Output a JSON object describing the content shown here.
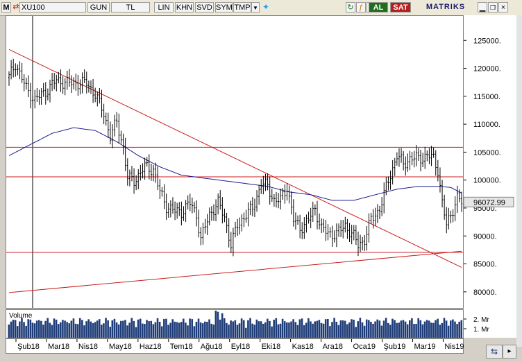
{
  "toolbar": {
    "m_label": "M",
    "symbol": "XU100",
    "period": "GUN",
    "currency": "TL",
    "scale": "LIN",
    "buttons": [
      "KHN",
      "SVD",
      "SYM",
      "TMP"
    ],
    "buy": "AL",
    "sell": "SAT",
    "brand": "MATRIKS",
    "icons": [
      "refresh-icon",
      "twitter-icon",
      "formula-icon",
      "clock-icon",
      "minimize-icon",
      "restore-icon",
      "close-icon"
    ]
  },
  "colors": {
    "price": "#000000",
    "ma": "#1c1c8c",
    "trend": "#c81e1e",
    "volume": "#1e3c78",
    "buy": "#1e6e1e",
    "sell": "#b41e1e"
  },
  "chart_data": {
    "type": "bar",
    "symbol": "XU100",
    "ylim": [
      77000,
      129500
    ],
    "yticks": [
      80000,
      85000,
      90000,
      95000,
      100000,
      105000,
      110000,
      115000,
      120000,
      125000
    ],
    "ytick_labels": [
      "80000.",
      "85000.",
      "90000.",
      "95000.",
      "100000.",
      "105000.",
      "110000.",
      "115000.",
      "120000.",
      "125000."
    ],
    "last_price": 96072.99,
    "last_price_label": "96072.99",
    "x_months": [
      "Şub18",
      "Mar18",
      "Nis18",
      "May18",
      "Haz18",
      "Tem18",
      "Ağu18",
      "Eyl18",
      "Eki18",
      "Kas18",
      "Ara18",
      "Oca19",
      "Şub19",
      "Mar19",
      "Nis19"
    ],
    "close_path": [
      [
        0,
        118500
      ],
      [
        3,
        121000
      ],
      [
        8,
        116500
      ],
      [
        12,
        114500
      ],
      [
        17,
        116000
      ],
      [
        22,
        118000
      ],
      [
        27,
        117500
      ],
      [
        32,
        117500
      ],
      [
        36,
        117500
      ],
      [
        40,
        115500
      ],
      [
        44,
        112000
      ],
      [
        47,
        108000
      ],
      [
        50,
        110500
      ],
      [
        53,
        106000
      ],
      [
        55,
        100500
      ],
      [
        58,
        100000
      ],
      [
        63,
        102500
      ],
      [
        67,
        102000
      ],
      [
        70,
        98000
      ],
      [
        73,
        95500
      ],
      [
        77,
        94500
      ],
      [
        80,
        94500
      ],
      [
        84,
        96000
      ],
      [
        87,
        94000
      ],
      [
        89,
        89500
      ],
      [
        93,
        94000
      ],
      [
        97,
        96000
      ],
      [
        100,
        93500
      ],
      [
        103,
        88500
      ],
      [
        106,
        92000
      ],
      [
        110,
        94000
      ],
      [
        113,
        95000
      ],
      [
        117,
        99500
      ],
      [
        120,
        99000
      ],
      [
        123,
        96500
      ],
      [
        126,
        96500
      ],
      [
        129,
        99000
      ],
      [
        132,
        93000
      ],
      [
        135,
        91500
      ],
      [
        139,
        93000
      ],
      [
        142,
        95000
      ],
      [
        145,
        91500
      ],
      [
        148,
        90500
      ],
      [
        152,
        90500
      ],
      [
        156,
        92000
      ],
      [
        160,
        90000
      ],
      [
        162,
        88500
      ],
      [
        165,
        89500
      ],
      [
        168,
        93000
      ],
      [
        172,
        95000
      ],
      [
        176,
        100000
      ],
      [
        180,
        104500
      ],
      [
        183,
        103000
      ],
      [
        186,
        104000
      ],
      [
        190,
        104000
      ],
      [
        194,
        104500
      ],
      [
        197,
        104000
      ],
      [
        199,
        102000
      ],
      [
        201,
        96000
      ],
      [
        203,
        92000
      ],
      [
        206,
        95000
      ],
      [
        208,
        97000
      ],
      [
        210,
        96073
      ]
    ],
    "ma_path": [
      [
        0,
        104500
      ],
      [
        10,
        106500
      ],
      [
        20,
        108500
      ],
      [
        30,
        109500
      ],
      [
        40,
        109000
      ],
      [
        50,
        107000
      ],
      [
        60,
        104500
      ],
      [
        70,
        102500
      ],
      [
        80,
        101000
      ],
      [
        90,
        100500
      ],
      [
        100,
        100000
      ],
      [
        110,
        99500
      ],
      [
        120,
        99000
      ],
      [
        130,
        98000
      ],
      [
        140,
        97500
      ],
      [
        150,
        96500
      ],
      [
        160,
        96500
      ],
      [
        170,
        97500
      ],
      [
        180,
        98500
      ],
      [
        190,
        99000
      ],
      [
        200,
        99000
      ],
      [
        205,
        98800
      ],
      [
        210,
        97800
      ]
    ],
    "horizontal_levels": [
      106000,
      100700,
      87200
    ],
    "trendlines": [
      {
        "from": [
          0,
          123500
        ],
        "to": [
          210,
          84500
        ]
      },
      {
        "from": [
          0,
          80000
        ],
        "to": [
          210,
          87400
        ]
      }
    ],
    "volume_panel": {
      "label": "Volume",
      "tick_labels": [
        "2. Mr",
        "1. Mr"
      ],
      "ylim": [
        0,
        3000000000
      ]
    }
  }
}
